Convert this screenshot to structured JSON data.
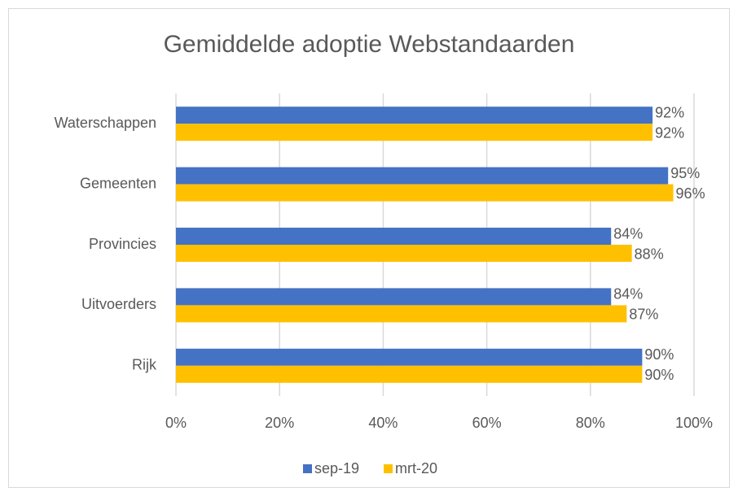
{
  "chart_data": {
    "type": "hbar",
    "title": "Gemiddelde adoptie Webstandaarden",
    "categories": [
      "Waterschappen",
      "Gemeenten",
      "Provincies",
      "Uitvoerders",
      "Rijk"
    ],
    "series": [
      {
        "name": "sep-19",
        "color": "#4472c4",
        "values": [
          92,
          95,
          84,
          84,
          90
        ],
        "value_labels": [
          "92%",
          "95%",
          "84%",
          "84%",
          "90%"
        ]
      },
      {
        "name": "mrt-20",
        "color": "#ffc000",
        "values": [
          92,
          96,
          88,
          87,
          90
        ],
        "value_labels": [
          "92%",
          "96%",
          "88%",
          "87%",
          "90%"
        ]
      }
    ],
    "xlim": [
      0,
      100
    ],
    "xticks": [
      {
        "value": 0,
        "label": "0%"
      },
      {
        "value": 20,
        "label": "20%"
      },
      {
        "value": 40,
        "label": "40%"
      },
      {
        "value": 60,
        "label": "60%"
      },
      {
        "value": 80,
        "label": "80%"
      },
      {
        "value": 100,
        "label": "100%"
      }
    ],
    "grid": true,
    "legend": "bottom"
  }
}
